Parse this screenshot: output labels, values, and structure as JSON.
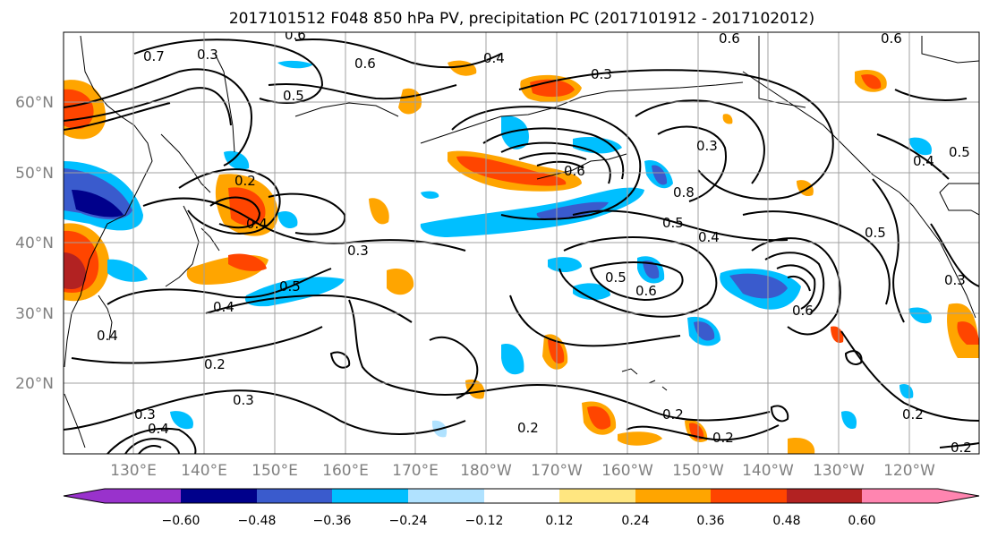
{
  "title": "2017101512 F048 850 hPa PV, precipitation PC (2017101912 - 2017102012)",
  "map": {
    "region": "North Pacific",
    "lon_range": [
      120,
      250
    ],
    "lat_range": [
      10,
      70
    ],
    "gridlines": true
  },
  "lon_labels": [
    "130°E",
    "140°E",
    "150°E",
    "160°E",
    "170°E",
    "180°W",
    "170°W",
    "160°W",
    "150°W",
    "140°W",
    "130°W",
    "120°W"
  ],
  "lat_labels": [
    "60°N",
    "50°N",
    "40°N",
    "30°N",
    "20°N"
  ],
  "colorbar": {
    "ticks": [
      "−0.60",
      "−0.48",
      "−0.36",
      "−0.24",
      "−0.12",
      "0.12",
      "0.24",
      "0.36",
      "0.48",
      "0.60"
    ],
    "colors": [
      "#9932cc",
      "#00008b",
      "#3a5bcd",
      "#00bfff",
      "#b0e2ff",
      "#ffffff",
      "#ffe680",
      "#ffa500",
      "#ff4500",
      "#b22222",
      "#ff85b0"
    ],
    "extend": "both"
  },
  "contour_labels": [
    "0.7",
    "0.6",
    "0.5",
    "0.3",
    "0.2",
    "0.4",
    "0.3",
    "0.4",
    "0.6",
    "0.5",
    "0.4",
    "0.3",
    "0.6",
    "0.5",
    "0.4",
    "0.6",
    "0.8",
    "0.3",
    "0.5",
    "0.6",
    "0.4",
    "0.2",
    "0.3",
    "0.2",
    "0.2",
    "0.2",
    "0.3",
    "0.4",
    "0.2",
    "0.6",
    "0.5",
    "0.4",
    "0.5",
    "0.3",
    "0.6",
    "0.2"
  ]
}
